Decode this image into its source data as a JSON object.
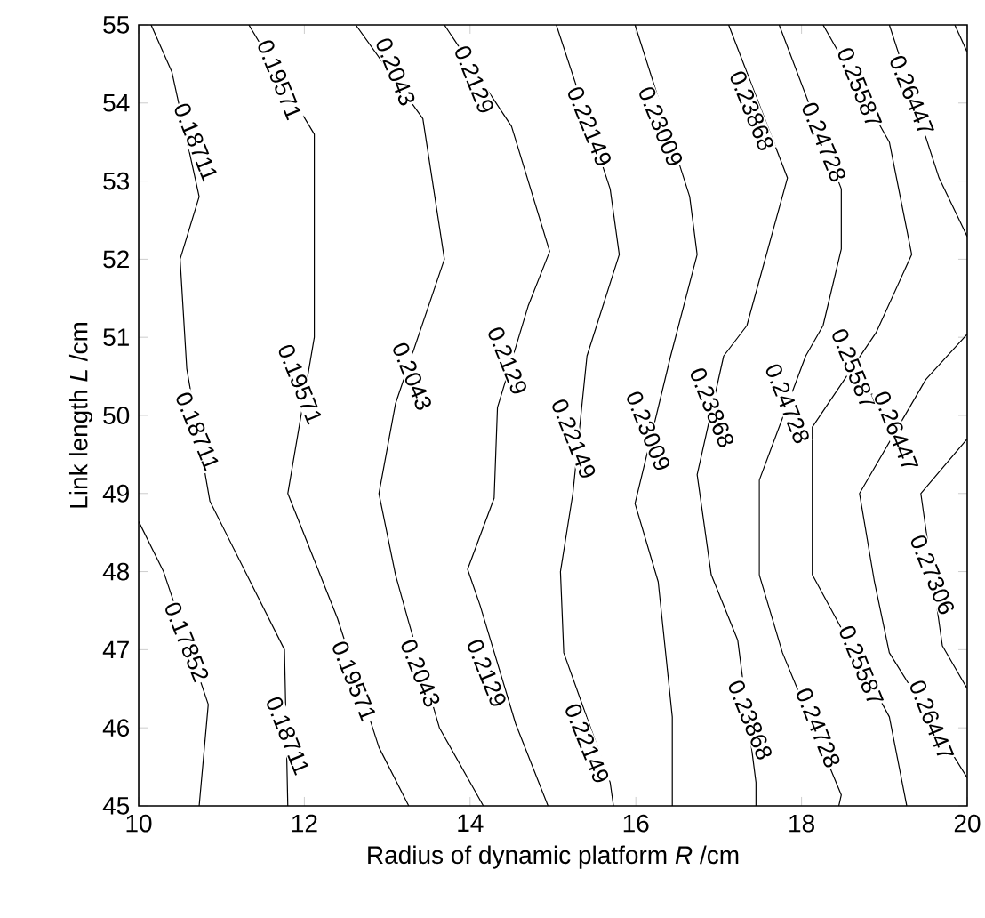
{
  "chart_data": {
    "type": "line",
    "xlabel": "Radius of dynamic platform *R* /cm",
    "ylabel": "Link length *L* /cm",
    "xlim": [
      10,
      20
    ],
    "ylim": [
      45,
      55
    ],
    "xticks": [
      10,
      12,
      14,
      16,
      18,
      20
    ],
    "yticks": [
      45,
      46,
      47,
      48,
      49,
      50,
      51,
      52,
      53,
      54,
      55
    ],
    "marker": "none",
    "line_style": "solid",
    "series": [
      {
        "color": "#000000",
        "x": [
          10,
          10.3,
          10.84,
          10.73
        ],
        "values": [
          48.64,
          48,
          46.3,
          45
        ]
      },
      {
        "color": "#000000",
        "x": [
          10.15,
          10.4,
          10.73,
          10.5,
          10.58,
          10.86,
          11.76,
          11.8
        ],
        "values": [
          55,
          54.4,
          52.8,
          52,
          50.6,
          48.9,
          47,
          45
        ]
      },
      {
        "color": "#000000",
        "x": [
          11.33,
          12.12,
          12.12,
          11.8,
          12.4,
          12.9,
          13.26
        ],
        "values": [
          55,
          53.6,
          51,
          49,
          47.4,
          45.75,
          45
        ]
      },
      {
        "color": "#000000",
        "x": [
          12.62,
          13.43,
          13.69,
          13.1,
          12.9,
          13.1,
          13.26,
          13.63,
          14.16
        ],
        "values": [
          55,
          53.8,
          52,
          50.15,
          49,
          47.96,
          47.35,
          46,
          45
        ]
      },
      {
        "color": "#000000",
        "x": [
          13.69,
          14.5,
          14.96,
          14.7,
          14.33,
          14.29,
          13.97,
          14.12,
          14.55,
          14.94
        ],
        "values": [
          55,
          53.7,
          52.1,
          51.4,
          50.1,
          48.94,
          48.03,
          47.57,
          46.05,
          45
        ]
      },
      {
        "color": "#000000",
        "x": [
          15.04,
          15.69,
          15.8,
          15.41,
          15.24,
          15.09,
          15.13,
          15.69,
          15.73
        ],
        "values": [
          55,
          52.9,
          52.06,
          50.76,
          49,
          48,
          46.96,
          45.3,
          45
        ]
      },
      {
        "color": "#000000",
        "x": [
          15.99,
          16.65,
          16.74,
          16.42,
          15.99,
          16.27,
          16.44,
          16.44
        ],
        "values": [
          55,
          52.8,
          52.06,
          50.76,
          48.87,
          47.87,
          46.14,
          45
        ]
      },
      {
        "color": "#000000",
        "x": [
          17.12,
          17.83,
          17.34,
          17.06,
          16.74,
          16.91,
          17.23,
          17.45,
          17.45
        ],
        "values": [
          55,
          53.04,
          51.15,
          50.76,
          49.24,
          47.96,
          47.12,
          45.3,
          45
        ]
      },
      {
        "color": "#000000",
        "x": [
          17.73,
          18.48,
          18.48,
          18.26,
          18.05,
          17.49,
          17.49,
          17.77,
          18.48,
          18.45
        ],
        "values": [
          55,
          52.9,
          52.13,
          51.15,
          50.76,
          49.17,
          47.96,
          46.96,
          45.14,
          45
        ]
      },
      {
        "color": "#000000",
        "x": [
          18.26,
          19.06,
          19.33,
          18.9,
          18.13,
          18.13,
          19.06,
          19.27
        ],
        "values": [
          55,
          53.5,
          52.06,
          51.06,
          49.85,
          47.96,
          46.14,
          45
        ]
      },
      {
        "color": "#000000",
        "x": [
          19.06,
          19.66,
          20
        ],
        "values": [
          55,
          53.04,
          52.29
        ]
      },
      {
        "color": "#000000",
        "x": [
          20,
          19.5,
          18.7,
          18.88,
          19.06,
          20
        ],
        "values": [
          51.04,
          50.46,
          49,
          47.87,
          46.96,
          45.36
        ]
      },
      {
        "color": "#000000",
        "x": [
          20,
          19.44,
          19.7,
          20
        ],
        "values": [
          49.7,
          49,
          47.05,
          46.5
        ]
      },
      {
        "color": "#000000",
        "x": [
          19.85,
          20
        ],
        "values": [
          55,
          54.65
        ]
      }
    ],
    "annotations": [
      {
        "text": "0.17852",
        "x": 10.58,
        "y": 47.1
      },
      {
        "text": "0.18711",
        "x": 10.69,
        "y": 53.5
      },
      {
        "text": "0.18711",
        "x": 10.71,
        "y": 49.8
      },
      {
        "text": "0.18711",
        "x": 11.8,
        "y": 45.9
      },
      {
        "text": "0.19571",
        "x": 11.7,
        "y": 54.3
      },
      {
        "text": "0.19571",
        "x": 11.95,
        "y": 50.4
      },
      {
        "text": "0.19571",
        "x": 12.6,
        "y": 46.6
      },
      {
        "text": "0.2043",
        "x": 13.1,
        "y": 54.4
      },
      {
        "text": "0.2043",
        "x": 13.3,
        "y": 50.5
      },
      {
        "text": "0.2043",
        "x": 13.4,
        "y": 46.7
      },
      {
        "text": "0.2129",
        "x": 14.05,
        "y": 54.3
      },
      {
        "text": "0.2129",
        "x": 14.45,
        "y": 50.7
      },
      {
        "text": "0.2129",
        "x": 14.2,
        "y": 46.7
      },
      {
        "text": "0.22149",
        "x": 15.44,
        "y": 53.7
      },
      {
        "text": "0.22149",
        "x": 15.25,
        "y": 49.7
      },
      {
        "text": "0.22149",
        "x": 15.41,
        "y": 45.8
      },
      {
        "text": "0.23009",
        "x": 16.3,
        "y": 53.7
      },
      {
        "text": "0.23009",
        "x": 16.15,
        "y": 49.8
      },
      {
        "text": "0.23868",
        "x": 17.4,
        "y": 53.9
      },
      {
        "text": "0.23868",
        "x": 16.92,
        "y": 50.1
      },
      {
        "text": "0.23868",
        "x": 17.38,
        "y": 46.1
      },
      {
        "text": "0.24728",
        "x": 18.27,
        "y": 53.5
      },
      {
        "text": "0.24728",
        "x": 17.83,
        "y": 50.15
      },
      {
        "text": "0.24728",
        "x": 18.2,
        "y": 46.0
      },
      {
        "text": "0.25587",
        "x": 18.7,
        "y": 54.2
      },
      {
        "text": "0.25587",
        "x": 18.63,
        "y": 50.6
      },
      {
        "text": "0.25587",
        "x": 18.72,
        "y": 46.8
      },
      {
        "text": "0.26447",
        "x": 19.33,
        "y": 54.1
      },
      {
        "text": "0.26447",
        "x": 19.14,
        "y": 49.8
      },
      {
        "text": "0.26447",
        "x": 19.57,
        "y": 46.1
      },
      {
        "text": "0.27306",
        "x": 19.58,
        "y": 47.96
      }
    ]
  }
}
